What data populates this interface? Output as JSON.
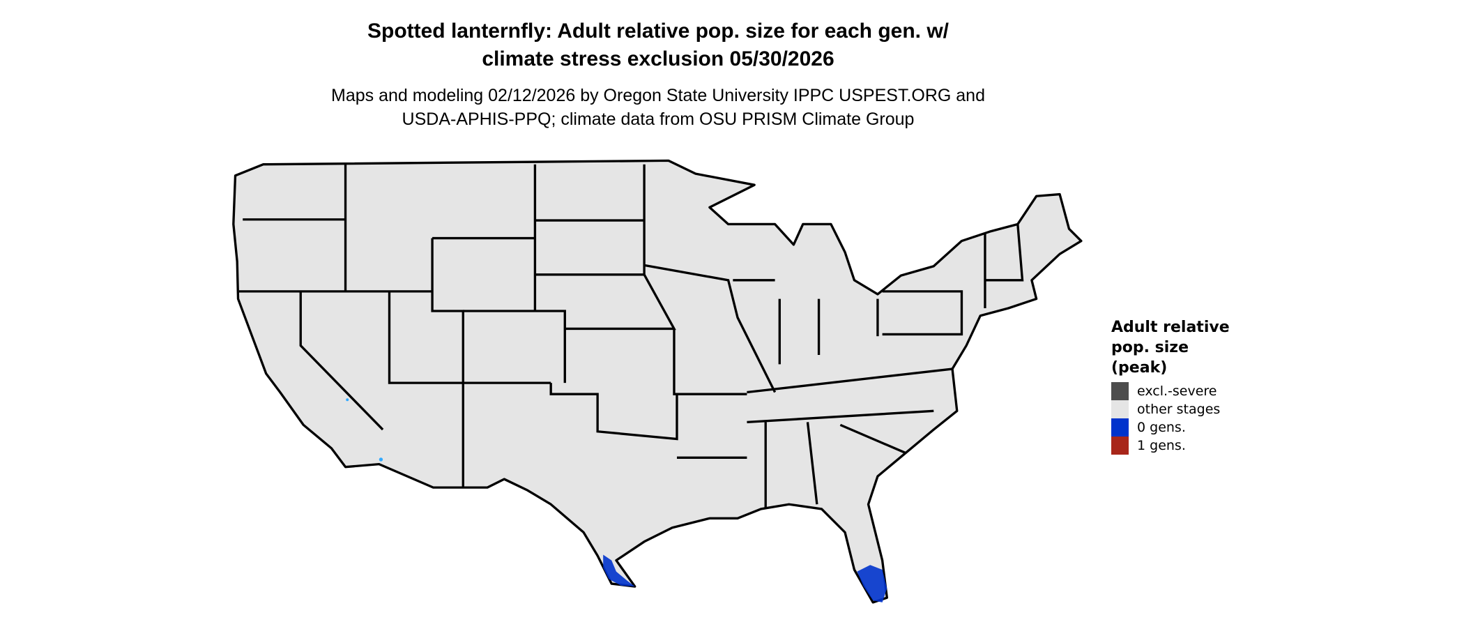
{
  "title": {
    "line1": "Spotted lanternfly: Adult relative pop. size for each gen. w/",
    "line2": "climate stress exclusion 05/30/2026"
  },
  "subtitle": {
    "line1": "Maps and modeling 02/12/2026 by Oregon State University IPPC USPEST.ORG and",
    "line2": "USDA-APHIS-PPQ; climate data from OSU PRISM Climate Group"
  },
  "map": {
    "region": "contiguous United States",
    "base_fill": "#e5e5e5",
    "border_color": "#000000",
    "highlighted_areas": [
      {
        "area": "southern Texas tip",
        "category": "0 gens."
      },
      {
        "area": "southern Florida",
        "category": "0 gens."
      }
    ]
  },
  "legend": {
    "title_lines": [
      "Adult relative",
      "pop. size",
      "(peak)"
    ],
    "items": [
      {
        "label": "excl.-severe",
        "color": "#4d4d4d"
      },
      {
        "label": "other stages",
        "color": "#e5e5e5"
      },
      {
        "label": "0 gens.",
        "color": "#0033cc"
      },
      {
        "label": "1 gens.",
        "color": "#a8261a"
      }
    ]
  }
}
